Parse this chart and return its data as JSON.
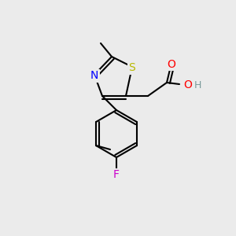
{
  "bg_color": "#ebebeb",
  "bond_color": "#000000",
  "bond_lw": 1.5,
  "atom_colors": {
    "S": "#b8b800",
    "N": "#0000ff",
    "O": "#ff0000",
    "F": "#cc00cc",
    "C": "#000000",
    "H": "#7a9a9a"
  },
  "font_size": 9,
  "label_font_size": 9
}
